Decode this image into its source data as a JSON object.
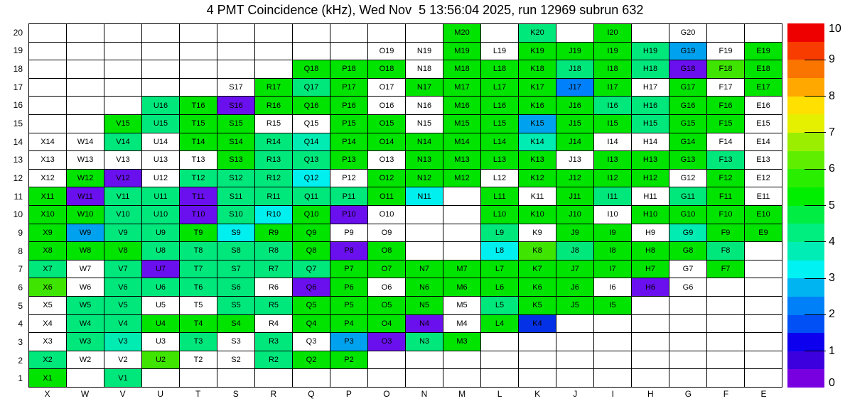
{
  "title": "4 PMT Coincidence (kHz), Wed Nov  5 13:56:04 2025, run 12969 subrun 632",
  "chart_data": {
    "type": "heatmap",
    "title": "4 PMT Coincidence (kHz), Wed Nov  5 13:56:04 2025, run 12969 subrun 632",
    "run": "12969",
    "subrun": "632",
    "timestamp": "Wed Nov  5 13:56:04 2025",
    "units": "kHz",
    "columns": [
      "X",
      "W",
      "V",
      "U",
      "T",
      "S",
      "R",
      "Q",
      "P",
      "O",
      "N",
      "M",
      "L",
      "K",
      "J",
      "I",
      "H",
      "G",
      "F",
      "E"
    ],
    "rows": [
      20,
      19,
      18,
      17,
      16,
      15,
      14,
      13,
      12,
      11,
      10,
      9,
      8,
      7,
      6,
      5,
      4,
      3,
      2,
      1
    ],
    "palette": {
      "g": "#00e400",
      "yg": "#3fe400",
      "sg": "#00e87c",
      "tg": "#00ecb2",
      "cy": "#00f0f0",
      "lb": "#00a2f0",
      "bl": "#0080fa",
      "db": "#0531e6",
      "vi": "#6a10ef",
      "w": "#ffffff"
    },
    "value_estimates_kHz": {
      "g": 5.2,
      "yg": 5.7,
      "sg": 4.4,
      "tg": 3.8,
      "cy": 3.3,
      "lb": 2.8,
      "bl": 2.4,
      "db": 1.6,
      "vi": 0.3,
      "w": 0
    },
    "cells": [
      [
        null,
        null,
        null,
        null,
        null,
        null,
        null,
        null,
        null,
        null,
        null,
        [
          "M20",
          "g"
        ],
        null,
        [
          "K20",
          "sg"
        ],
        null,
        [
          "I20",
          "g"
        ],
        null,
        [
          "G20",
          "w"
        ],
        null,
        null
      ],
      [
        null,
        null,
        null,
        null,
        null,
        null,
        null,
        null,
        null,
        [
          "O19",
          "w"
        ],
        [
          "N19",
          "w"
        ],
        [
          "M19",
          "g"
        ],
        [
          "L19",
          "w"
        ],
        [
          "K19",
          "g"
        ],
        [
          "J19",
          "g"
        ],
        [
          "I19",
          "g"
        ],
        [
          "H19",
          "sg"
        ],
        [
          "G19",
          "lb"
        ],
        [
          "F19",
          "w"
        ],
        [
          "E19",
          "g"
        ]
      ],
      [
        null,
        null,
        null,
        null,
        null,
        null,
        null,
        [
          "Q18",
          "g"
        ],
        [
          "P18",
          "g"
        ],
        [
          "O18",
          "g"
        ],
        [
          "N18",
          "w"
        ],
        [
          "M18",
          "g"
        ],
        [
          "L18",
          "g"
        ],
        [
          "K18",
          "g"
        ],
        [
          "J18",
          "sg"
        ],
        [
          "I18",
          "g"
        ],
        [
          "H18",
          "sg"
        ],
        [
          "G18",
          "vi"
        ],
        [
          "F18",
          "yg"
        ],
        [
          "E18",
          "g"
        ]
      ],
      [
        null,
        null,
        null,
        null,
        null,
        [
          "S17",
          "w"
        ],
        [
          "R17",
          "g"
        ],
        [
          "Q17",
          "sg"
        ],
        [
          "P17",
          "g"
        ],
        [
          "O17",
          "w"
        ],
        [
          "N17",
          "g"
        ],
        [
          "M17",
          "g"
        ],
        [
          "L17",
          "g"
        ],
        [
          "K17",
          "g"
        ],
        [
          "J17",
          "bl"
        ],
        [
          "I17",
          "g"
        ],
        [
          "H17",
          "w"
        ],
        [
          "G17",
          "g"
        ],
        [
          "F17",
          "w"
        ],
        [
          "E17",
          "g"
        ]
      ],
      [
        null,
        null,
        null,
        [
          "U16",
          "sg"
        ],
        [
          "T16",
          "g"
        ],
        [
          "S16",
          "vi"
        ],
        [
          "R16",
          "g"
        ],
        [
          "Q16",
          "g"
        ],
        [
          "P16",
          "g"
        ],
        [
          "O16",
          "w"
        ],
        [
          "N16",
          "w"
        ],
        [
          "M16",
          "g"
        ],
        [
          "L16",
          "g"
        ],
        [
          "K16",
          "g"
        ],
        [
          "J16",
          "g"
        ],
        [
          "I16",
          "sg"
        ],
        [
          "H16",
          "sg"
        ],
        [
          "G16",
          "g"
        ],
        [
          "F16",
          "g"
        ],
        [
          "E16",
          "w"
        ]
      ],
      [
        null,
        null,
        [
          "V15",
          "g"
        ],
        [
          "U15",
          "sg"
        ],
        [
          "T15",
          "g"
        ],
        [
          "S15",
          "g"
        ],
        [
          "R15",
          "w"
        ],
        [
          "Q15",
          "w"
        ],
        [
          "P15",
          "g"
        ],
        [
          "O15",
          "g"
        ],
        [
          "N15",
          "w"
        ],
        [
          "M15",
          "g"
        ],
        [
          "L15",
          "g"
        ],
        [
          "K15",
          "lb"
        ],
        [
          "J15",
          "g"
        ],
        [
          "I15",
          "g"
        ],
        [
          "H15",
          "sg"
        ],
        [
          "G15",
          "g"
        ],
        [
          "F15",
          "g"
        ],
        [
          "E15",
          "w"
        ]
      ],
      [
        [
          "X14",
          "w"
        ],
        [
          "W14",
          "w"
        ],
        [
          "V14",
          "sg"
        ],
        [
          "U14",
          "w"
        ],
        [
          "T14",
          "g"
        ],
        [
          "S14",
          "g"
        ],
        [
          "R14",
          "sg"
        ],
        [
          "Q14",
          "tg"
        ],
        [
          "P14",
          "g"
        ],
        [
          "O14",
          "g"
        ],
        [
          "N14",
          "g"
        ],
        [
          "M14",
          "g"
        ],
        [
          "L14",
          "g"
        ],
        [
          "K14",
          "tg"
        ],
        [
          "J14",
          "g"
        ],
        [
          "I14",
          "w"
        ],
        [
          "H14",
          "w"
        ],
        [
          "G14",
          "g"
        ],
        [
          "F14",
          "w"
        ],
        [
          "E14",
          "w"
        ]
      ],
      [
        [
          "X13",
          "w"
        ],
        [
          "W13",
          "w"
        ],
        [
          "V13",
          "w"
        ],
        [
          "U13",
          "w"
        ],
        [
          "T13",
          "w"
        ],
        [
          "S13",
          "g"
        ],
        [
          "R13",
          "sg"
        ],
        [
          "Q13",
          "sg"
        ],
        [
          "P13",
          "g"
        ],
        [
          "O13",
          "w"
        ],
        [
          "N13",
          "g"
        ],
        [
          "M13",
          "g"
        ],
        [
          "L13",
          "g"
        ],
        [
          "K13",
          "g"
        ],
        [
          "J13",
          "w"
        ],
        [
          "I13",
          "g"
        ],
        [
          "H13",
          "g"
        ],
        [
          "G13",
          "g"
        ],
        [
          "F13",
          "sg"
        ],
        [
          "E13",
          "w"
        ]
      ],
      [
        [
          "X12",
          "w"
        ],
        [
          "W12",
          "g"
        ],
        [
          "V12",
          "vi"
        ],
        [
          "U12",
          "w"
        ],
        [
          "T12",
          "sg"
        ],
        [
          "S12",
          "sg"
        ],
        [
          "R12",
          "sg"
        ],
        [
          "Q12",
          "cy"
        ],
        [
          "P12",
          "w"
        ],
        [
          "O12",
          "g"
        ],
        [
          "N12",
          "g"
        ],
        [
          "M12",
          "g"
        ],
        [
          "L12",
          "w"
        ],
        [
          "K12",
          "g"
        ],
        [
          "J12",
          "g"
        ],
        [
          "I12",
          "g"
        ],
        [
          "H12",
          "g"
        ],
        [
          "G12",
          "w"
        ],
        [
          "F12",
          "g"
        ],
        [
          "E12",
          "w"
        ]
      ],
      [
        [
          "X11",
          "g"
        ],
        [
          "W11",
          "vi"
        ],
        [
          "V11",
          "sg"
        ],
        [
          "U11",
          "sg"
        ],
        [
          "T11",
          "vi"
        ],
        [
          "S11",
          "sg"
        ],
        [
          "R11",
          "sg"
        ],
        [
          "Q11",
          "sg"
        ],
        [
          "P11",
          "sg"
        ],
        [
          "O11",
          "g"
        ],
        [
          "N11",
          "cy"
        ],
        null,
        [
          "L11",
          "g"
        ],
        [
          "K11",
          "w"
        ],
        [
          "J11",
          "g"
        ],
        [
          "I11",
          "sg"
        ],
        [
          "H11",
          "w"
        ],
        [
          "G11",
          "sg"
        ],
        [
          "F11",
          "g"
        ],
        [
          "E11",
          "w"
        ]
      ],
      [
        [
          "X10",
          "g"
        ],
        [
          "W10",
          "g"
        ],
        [
          "V10",
          "sg"
        ],
        [
          "U10",
          "sg"
        ],
        [
          "T10",
          "vi"
        ],
        [
          "S10",
          "sg"
        ],
        [
          "R10",
          "cy"
        ],
        [
          "Q10",
          "g"
        ],
        [
          "P10",
          "vi"
        ],
        [
          "O10",
          "w"
        ],
        null,
        null,
        [
          "L10",
          "g"
        ],
        [
          "K10",
          "g"
        ],
        [
          "J10",
          "g"
        ],
        [
          "I10",
          "w"
        ],
        [
          "H10",
          "g"
        ],
        [
          "G10",
          "g"
        ],
        [
          "F10",
          "g"
        ],
        [
          "E10",
          "g"
        ]
      ],
      [
        [
          "X9",
          "g"
        ],
        [
          "W9",
          "lb"
        ],
        [
          "V9",
          "sg"
        ],
        [
          "U9",
          "sg"
        ],
        [
          "T9",
          "g"
        ],
        [
          "S9",
          "cy"
        ],
        [
          "R9",
          "g"
        ],
        [
          "Q9",
          "g"
        ],
        [
          "P9",
          "w"
        ],
        [
          "O9",
          "w"
        ],
        null,
        null,
        [
          "L9",
          "sg"
        ],
        [
          "K9",
          "w"
        ],
        [
          "J9",
          "g"
        ],
        [
          "I9",
          "g"
        ],
        [
          "H9",
          "w"
        ],
        [
          "G9",
          "tg"
        ],
        [
          "F9",
          "g"
        ],
        [
          "E9",
          "g"
        ]
      ],
      [
        [
          "X8",
          "g"
        ],
        [
          "W8",
          "g"
        ],
        [
          "V8",
          "g"
        ],
        [
          "U8",
          "sg"
        ],
        [
          "T8",
          "sg"
        ],
        [
          "S8",
          "sg"
        ],
        [
          "R8",
          "sg"
        ],
        [
          "Q8",
          "g"
        ],
        [
          "P8",
          "vi"
        ],
        [
          "O8",
          "g"
        ],
        null,
        null,
        [
          "L8",
          "cy"
        ],
        [
          "K8",
          "yg"
        ],
        [
          "J8",
          "sg"
        ],
        [
          "I8",
          "g"
        ],
        [
          "H8",
          "g"
        ],
        [
          "G8",
          "g"
        ],
        [
          "F8",
          "sg"
        ],
        null
      ],
      [
        [
          "X7",
          "sg"
        ],
        [
          "W7",
          "w"
        ],
        [
          "V7",
          "sg"
        ],
        [
          "U7",
          "vi"
        ],
        [
          "T7",
          "sg"
        ],
        [
          "S7",
          "sg"
        ],
        [
          "R7",
          "sg"
        ],
        [
          "Q7",
          "sg"
        ],
        [
          "P7",
          "g"
        ],
        [
          "O7",
          "g"
        ],
        [
          "N7",
          "g"
        ],
        [
          "M7",
          "g"
        ],
        [
          "L7",
          "g"
        ],
        [
          "K7",
          "g"
        ],
        [
          "J7",
          "g"
        ],
        [
          "I7",
          "g"
        ],
        [
          "H7",
          "g"
        ],
        [
          "G7",
          "w"
        ],
        [
          "F7",
          "g"
        ],
        null
      ],
      [
        [
          "X6",
          "yg"
        ],
        [
          "W6",
          "w"
        ],
        [
          "V6",
          "sg"
        ],
        [
          "U6",
          "sg"
        ],
        [
          "T6",
          "sg"
        ],
        [
          "S6",
          "sg"
        ],
        [
          "R6",
          "w"
        ],
        [
          "Q6",
          "vi"
        ],
        [
          "P6",
          "g"
        ],
        [
          "O6",
          "w"
        ],
        [
          "N6",
          "g"
        ],
        [
          "M6",
          "g"
        ],
        [
          "L6",
          "g"
        ],
        [
          "K6",
          "g"
        ],
        [
          "J6",
          "g"
        ],
        [
          "I6",
          "w"
        ],
        [
          "H6",
          "vi"
        ],
        [
          "G6",
          "w"
        ],
        null,
        null
      ],
      [
        [
          "X5",
          "w"
        ],
        [
          "W5",
          "sg"
        ],
        [
          "V5",
          "sg"
        ],
        [
          "U5",
          "w"
        ],
        [
          "T5",
          "w"
        ],
        [
          "S5",
          "sg"
        ],
        [
          "R5",
          "sg"
        ],
        [
          "Q5",
          "g"
        ],
        [
          "P5",
          "g"
        ],
        [
          "O5",
          "g"
        ],
        [
          "N5",
          "g"
        ],
        [
          "M5",
          "w"
        ],
        [
          "L5",
          "sg"
        ],
        [
          "K5",
          "g"
        ],
        [
          "J5",
          "g"
        ],
        [
          "I5",
          "g"
        ],
        null,
        null,
        null,
        null
      ],
      [
        [
          "X4",
          "w"
        ],
        [
          "W4",
          "sg"
        ],
        [
          "V4",
          "sg"
        ],
        [
          "U4",
          "g"
        ],
        [
          "T4",
          "g"
        ],
        [
          "S4",
          "g"
        ],
        [
          "R4",
          "w"
        ],
        [
          "Q4",
          "g"
        ],
        [
          "P4",
          "g"
        ],
        [
          "O4",
          "g"
        ],
        [
          "N4",
          "vi"
        ],
        [
          "M4",
          "w"
        ],
        [
          "L4",
          "g"
        ],
        [
          "K4",
          "db"
        ],
        null,
        null,
        null,
        null,
        null,
        null
      ],
      [
        [
          "X3",
          "w"
        ],
        [
          "W3",
          "sg"
        ],
        [
          "V3",
          "tg"
        ],
        [
          "U3",
          "w"
        ],
        [
          "T3",
          "sg"
        ],
        [
          "S3",
          "w"
        ],
        [
          "R3",
          "sg"
        ],
        [
          "Q3",
          "w"
        ],
        [
          "P3",
          "lb"
        ],
        [
          "O3",
          "vi"
        ],
        [
          "N3",
          "sg"
        ],
        [
          "M3",
          "g"
        ],
        null,
        null,
        null,
        null,
        null,
        null,
        null,
        null
      ],
      [
        [
          "X2",
          "sg"
        ],
        [
          "W2",
          "w"
        ],
        [
          "V2",
          "w"
        ],
        [
          "U2",
          "yg"
        ],
        [
          "T2",
          "w"
        ],
        [
          "S2",
          "w"
        ],
        [
          "R2",
          "sg"
        ],
        [
          "Q2",
          "g"
        ],
        [
          "P2",
          "g"
        ],
        null,
        null,
        null,
        null,
        null,
        null,
        null,
        null,
        null,
        null,
        null
      ],
      [
        [
          "X1",
          "g"
        ],
        null,
        [
          "V1",
          "sg"
        ],
        null,
        null,
        null,
        null,
        null,
        null,
        null,
        null,
        null,
        null,
        null,
        null,
        null,
        null,
        null,
        null,
        null
      ]
    ],
    "colorbar": {
      "min": 0,
      "max": 10,
      "tick_labels": [
        "0",
        "1",
        "2",
        "3",
        "4",
        "5",
        "6",
        "7",
        "8",
        "9",
        "10"
      ],
      "bands_bottom_to_top": [
        "#7800e0",
        "#3c00de",
        "#0d00ee",
        "#0050f5",
        "#0080f8",
        "#00b4f2",
        "#00f2f2",
        "#00eeb6",
        "#00ee80",
        "#00ee44",
        "#00ee00",
        "#2aee00",
        "#60ee00",
        "#9cee00",
        "#e4f000",
        "#ffe000",
        "#ffa800",
        "#fa7400",
        "#f83c00",
        "#ee0000"
      ]
    },
    "layout": {
      "grid_lines": true,
      "colorbar_position": "right"
    }
  }
}
